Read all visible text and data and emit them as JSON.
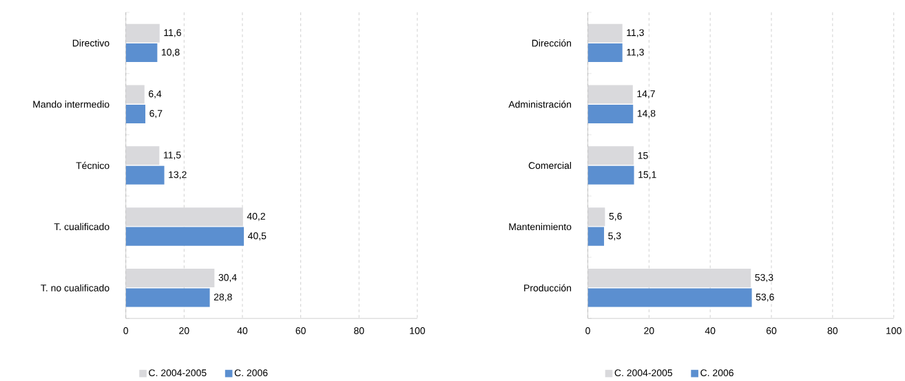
{
  "chart_data": [
    {
      "type": "bar",
      "orientation": "horizontal",
      "categories": [
        "Directivo",
        "Mando intermedio",
        "Técnico",
        "T. cualificado",
        "T. no cualificado"
      ],
      "series": [
        {
          "name": "C. 2004-2005",
          "color": "#d9d9dc",
          "values": [
            11.6,
            6.4,
            11.5,
            40.2,
            30.4
          ],
          "value_labels": [
            "11,6",
            "6,4",
            "11,5",
            "40,2",
            "30,4"
          ]
        },
        {
          "name": "C. 2006",
          "color": "#5b8fd0",
          "values": [
            10.8,
            6.7,
            13.2,
            40.5,
            28.8
          ],
          "value_labels": [
            "10,8",
            "6,7",
            "13,2",
            "40,5",
            "28,8"
          ]
        }
      ],
      "xlim": [
        0,
        100
      ],
      "xticks": [
        0,
        20,
        40,
        60,
        80,
        100
      ],
      "grid": "x",
      "legend": "bottom"
    },
    {
      "type": "bar",
      "orientation": "horizontal",
      "categories": [
        "Dirección",
        "Administración",
        "Comercial",
        "Mantenimiento",
        "Producción"
      ],
      "series": [
        {
          "name": "C. 2004-2005",
          "color": "#d9d9dc",
          "values": [
            11.3,
            14.7,
            15,
            5.6,
            53.3
          ],
          "value_labels": [
            "11,3",
            "14,7",
            "15",
            "5,6",
            "53,3"
          ]
        },
        {
          "name": "C. 2006",
          "color": "#5b8fd0",
          "values": [
            11.3,
            14.8,
            15.1,
            5.3,
            53.6
          ],
          "value_labels": [
            "11,3",
            "14,8",
            "15,1",
            "5,3",
            "53,6"
          ]
        }
      ],
      "xlim": [
        0,
        100
      ],
      "xticks": [
        0,
        20,
        40,
        60,
        80,
        100
      ],
      "grid": "x",
      "legend": "bottom"
    }
  ]
}
